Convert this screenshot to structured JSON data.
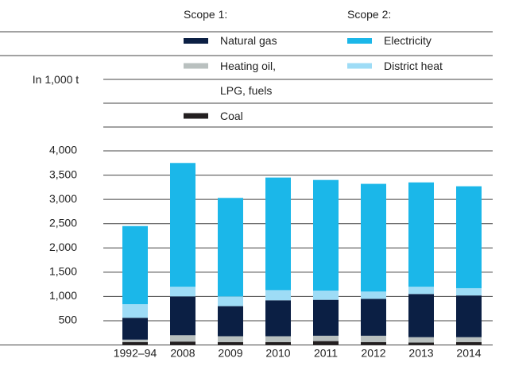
{
  "chart_data": {
    "type": "stacked_bar",
    "y_label": "In 1,000 t",
    "legend_groups": [
      "Scope 1:",
      "Scope 2:"
    ],
    "categories": [
      "1992–94",
      "2008",
      "2009",
      "2010",
      "2011",
      "2012",
      "2013",
      "2014"
    ],
    "series": [
      {
        "name": "Coal",
        "color": "#231f20",
        "group": 0,
        "values": [
          60,
          70,
          60,
          60,
          80,
          60,
          50,
          60
        ]
      },
      {
        "name": "Heating oil, LPG, fuels",
        "color": "#b9c0bf",
        "group": 0,
        "values": [
          50,
          130,
          120,
          120,
          110,
          130,
          110,
          100
        ]
      },
      {
        "name": "Natural gas",
        "color": "#0b1f44",
        "group": 0,
        "values": [
          450,
          800,
          620,
          740,
          740,
          760,
          890,
          860
        ]
      },
      {
        "name": "District heat",
        "color": "#9edcf6",
        "group": 1,
        "values": [
          280,
          200,
          200,
          210,
          190,
          150,
          150,
          150
        ]
      },
      {
        "name": "Electricity",
        "color": "#1bb7e9",
        "group": 1,
        "values": [
          1610,
          2550,
          2030,
          2320,
          2280,
          2220,
          2150,
          2100
        ]
      }
    ],
    "ylim": [
      0,
      4000
    ],
    "yticks": [
      {
        "value": 500,
        "label": "500"
      },
      {
        "value": 1000,
        "label": "1,000"
      },
      {
        "value": 1500,
        "label": "1,500"
      },
      {
        "value": 2000,
        "label": "2,000"
      },
      {
        "value": 2500,
        "label": "2,500"
      },
      {
        "value": 3000,
        "label": "3,000"
      },
      {
        "value": 3500,
        "label": "3,500"
      },
      {
        "value": 4000,
        "label": "4,000"
      }
    ],
    "grid": true
  }
}
